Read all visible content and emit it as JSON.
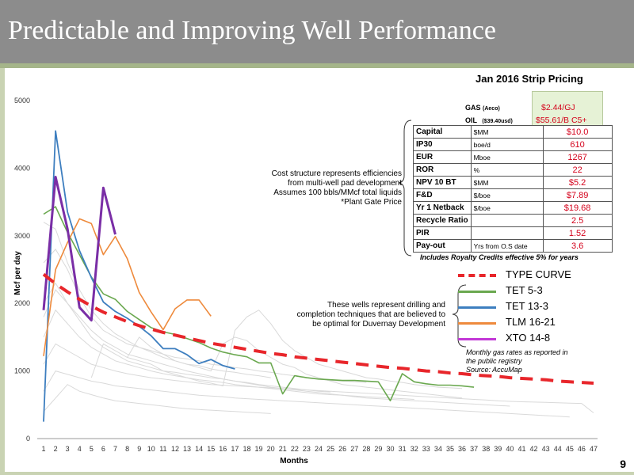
{
  "slide": {
    "title": "Predictable and Improving Well Performance",
    "page_number": "9"
  },
  "pricing": {
    "title": "Jan 2016 Strip Pricing",
    "gas_label": "GAS",
    "gas_sub": "(Aeco)",
    "gas_value": "$2.44/GJ",
    "oil_label": "OIL",
    "oil_sub": "($39.40usd)",
    "oil_value": "$55.61/B C5+"
  },
  "economics": {
    "rows": [
      {
        "metric": "Capital",
        "unit": "$MM",
        "value": "$10.0"
      },
      {
        "metric": "IP30",
        "unit": "boe/d",
        "value": "610"
      },
      {
        "metric": "EUR",
        "unit": "Mboe",
        "value": "1267"
      },
      {
        "metric": "ROR",
        "unit": "%",
        "value": "22"
      },
      {
        "metric": "NPV 10 BT",
        "unit": "$MM",
        "value": "$5.2"
      },
      {
        "metric": "F&D",
        "unit": "$/boe",
        "value": "$7.89"
      },
      {
        "metric": "Yr 1 Netback",
        "unit": "$/boe",
        "value": "$19.68"
      },
      {
        "metric": "Recycle Ratio",
        "unit": "",
        "value": "2.5"
      },
      {
        "metric": "PIR",
        "unit": "",
        "value": "1.52"
      },
      {
        "metric": "Pay-out",
        "unit": "Yrs from O.S date",
        "value": "3.6"
      }
    ],
    "royalty_note": "Includes Royalty Credits effective 5% for years"
  },
  "notes": {
    "cost_lines": [
      "Cost structure represents efficiencies",
      "from multi-well pad development",
      "Assumes 100 bbls/MMcf total liquids",
      "*Plant Gate Price"
    ],
    "wells_lines": [
      "These wells represent drilling and",
      "completion techniques that are believed to",
      "be optimal for Duvernay Development"
    ],
    "registry_lines": [
      "Monthly gas rates as reported in",
      "the public registry",
      "Source: AccuMap"
    ]
  },
  "colors": {
    "type_curve": "#e8262b",
    "tet53": "#6aa84f",
    "tet133": "#3d7ebf",
    "tlm1621": "#ee8a3c",
    "xto148": "#7a2ea6",
    "background_wells": "#d9d9d9",
    "title_bar": "#8c8c8c"
  },
  "chart_data": {
    "type": "line",
    "title": "",
    "xlabel": "Months",
    "ylabel": "Mcf per day",
    "ylim": [
      0,
      5000
    ],
    "xlim": [
      1,
      47
    ],
    "y_ticks": [
      0,
      1000,
      2000,
      3000,
      4000,
      5000
    ],
    "x_ticks": [
      "1",
      "2",
      "3",
      "4",
      "5",
      "6",
      "7",
      "8",
      "9",
      "10",
      "11",
      "12",
      "13",
      "14",
      "15",
      "16",
      "17",
      "18",
      "19",
      "20",
      "21",
      "22",
      "23",
      "24",
      "25",
      "26",
      "27",
      "28",
      "29",
      "30",
      "31",
      "32",
      "33",
      "34",
      "35",
      "36",
      "37",
      "38",
      "39",
      "40",
      "41",
      "42",
      "43",
      "44",
      "45",
      "46",
      "47"
    ],
    "grid": false,
    "legend_position": "right",
    "series": [
      {
        "name": "TYPE CURVE",
        "style": "dashed",
        "x": [
          1,
          2,
          3,
          4,
          5,
          6,
          7,
          8,
          9,
          10,
          11,
          12,
          13,
          14,
          15,
          16,
          17,
          18,
          19,
          20,
          21,
          22,
          23,
          24,
          25,
          26,
          27,
          28,
          29,
          30,
          31,
          32,
          33,
          34,
          35,
          36,
          37,
          38,
          39,
          40,
          41,
          42,
          43,
          44,
          45,
          46,
          47
        ],
        "y": [
          2430,
          2290,
          2170,
          2060,
          1960,
          1870,
          1800,
          1730,
          1670,
          1620,
          1570,
          1530,
          1490,
          1450,
          1410,
          1380,
          1350,
          1320,
          1290,
          1260,
          1240,
          1210,
          1190,
          1170,
          1150,
          1130,
          1110,
          1090,
          1070,
          1050,
          1040,
          1020,
          1000,
          990,
          970,
          960,
          940,
          930,
          920,
          900,
          890,
          880,
          870,
          850,
          840,
          830,
          820
        ]
      },
      {
        "name": "TET 5-3",
        "x": [
          1,
          2,
          3,
          4,
          5,
          6,
          7,
          8,
          9,
          10,
          11,
          12,
          13,
          14,
          15,
          16,
          17,
          18,
          19,
          20,
          21,
          22,
          23,
          24,
          25,
          26,
          27,
          28,
          29,
          30,
          31,
          32,
          33,
          34,
          35,
          36,
          37
        ],
        "y": [
          3320,
          3430,
          3050,
          2720,
          2390,
          2140,
          2060,
          1880,
          1760,
          1640,
          1580,
          1540,
          1480,
          1420,
          1340,
          1280,
          1240,
          1210,
          1120,
          1120,
          660,
          930,
          900,
          880,
          870,
          860,
          860,
          850,
          840,
          560,
          960,
          840,
          810,
          790,
          790,
          780,
          760
        ]
      },
      {
        "name": "TET 13-3",
        "x": [
          1,
          2,
          3,
          4,
          5,
          6,
          7,
          8,
          9,
          10,
          11,
          12,
          13,
          14,
          15,
          16,
          17
        ],
        "y": [
          250,
          4550,
          3350,
          2780,
          2380,
          2020,
          1880,
          1780,
          1660,
          1520,
          1330,
          1330,
          1240,
          1110,
          1170,
          1080,
          1030
        ]
      },
      {
        "name": "TLM 16-21",
        "x": [
          1,
          2,
          3,
          4,
          5,
          6,
          7,
          8,
          9,
          10,
          11,
          12,
          13,
          14,
          15
        ],
        "y": [
          1220,
          2500,
          2900,
          3250,
          3180,
          2720,
          2990,
          2660,
          2160,
          1870,
          1610,
          1920,
          2050,
          2050,
          1810
        ]
      },
      {
        "name": "XTO 14-8",
        "x": [
          1,
          2,
          3,
          4,
          5,
          6,
          7
        ],
        "y": [
          1900,
          3870,
          3100,
          1940,
          1750,
          3710,
          3020
        ]
      }
    ],
    "background_wells": [
      {
        "x": [
          1,
          2,
          3,
          4,
          5,
          6,
          7,
          8,
          9,
          10,
          11,
          12,
          13,
          14,
          15,
          16,
          17,
          18,
          19,
          20
        ],
        "y": [
          3200,
          3100,
          2600,
          2200,
          1900,
          1700,
          1550,
          1450,
          1350,
          1280,
          1200,
          1150,
          1100,
          1080,
          1030,
          1000,
          980,
          950,
          930,
          900
        ]
      },
      {
        "x": [
          1,
          2,
          3,
          4,
          5,
          6,
          7,
          8,
          9,
          10,
          11,
          12,
          13,
          14,
          15,
          16,
          17,
          18,
          19,
          20,
          21,
          22,
          23,
          24,
          25,
          26,
          27,
          28
        ],
        "y": [
          2600,
          2800,
          2500,
          2100,
          1800,
          1600,
          1500,
          1400,
          1350,
          1300,
          1250,
          1200,
          1180,
          1150,
          1100,
          1080,
          1050,
          1030,
          1000,
          980,
          950,
          930,
          900,
          880,
          860,
          850,
          840,
          830
        ]
      },
      {
        "x": [
          1,
          2,
          3,
          4,
          5,
          6,
          7,
          8,
          9,
          10,
          11,
          12,
          13,
          14,
          15,
          16,
          17,
          18,
          19,
          20,
          21,
          22,
          23,
          24,
          25
        ],
        "y": [
          1800,
          2200,
          2000,
          1750,
          1500,
          1350,
          1250,
          1150,
          1100,
          1050,
          1000,
          980,
          950,
          930,
          900,
          880,
          850,
          830,
          800,
          780,
          760,
          740,
          720,
          700,
          690
        ]
      },
      {
        "x": [
          1,
          2,
          3,
          4,
          5,
          6,
          7,
          8,
          9,
          10,
          11,
          12,
          13,
          14,
          15,
          16,
          17,
          18,
          19,
          20,
          21,
          22,
          23,
          24,
          25,
          26,
          27,
          28,
          29,
          30,
          31,
          32
        ],
        "y": [
          1500,
          1900,
          1700,
          1500,
          1350,
          1250,
          1150,
          1100,
          1050,
          1000,
          960,
          930,
          900,
          870,
          850,
          830,
          800,
          780,
          760,
          740,
          720,
          700,
          680,
          660,
          650,
          640,
          630,
          620,
          610,
          600,
          590,
          580
        ]
      },
      {
        "x": [
          1,
          2,
          3,
          4,
          5,
          6,
          7,
          8,
          9,
          10,
          11,
          12,
          13,
          14,
          15,
          16,
          17,
          18,
          19,
          20,
          21,
          22,
          23,
          24,
          25,
          26,
          27,
          28,
          29,
          30,
          31,
          32,
          33,
          34,
          35,
          36,
          37,
          38,
          39,
          40,
          41,
          42,
          43,
          44,
          45,
          46,
          47
        ],
        "y": [
          1100,
          1400,
          1300,
          1200,
          1100,
          1050,
          1000,
          960,
          930,
          900,
          880,
          860,
          840,
          820,
          800,
          790,
          780,
          770,
          760,
          750,
          740,
          730,
          720,
          710,
          700,
          690,
          680,
          670,
          660,
          650,
          640,
          630,
          620,
          610,
          600,
          590,
          580,
          570,
          560,
          550,
          545,
          540,
          535,
          530,
          525,
          520,
          380
        ]
      },
      {
        "x": [
          1,
          2,
          3,
          4,
          5,
          6,
          7,
          8,
          9,
          10,
          11,
          12,
          13,
          14,
          15,
          16,
          17,
          18,
          19,
          20,
          21,
          22,
          23,
          24,
          25,
          26,
          27,
          28,
          29,
          30,
          31,
          32,
          33,
          34,
          35,
          36,
          37,
          38,
          39,
          40,
          41,
          42,
          43,
          44,
          45
        ],
        "y": [
          700,
          1000,
          950,
          900,
          850,
          820,
          780,
          760,
          740,
          720,
          700,
          680,
          660,
          640,
          630,
          620,
          600,
          590,
          580,
          570,
          560,
          550,
          540,
          530,
          520,
          510,
          500,
          490,
          480,
          470,
          460,
          450,
          440,
          430,
          420,
          410,
          400,
          390,
          380,
          370,
          360,
          350,
          340,
          330,
          320
        ]
      },
      {
        "x": [
          5,
          6,
          7,
          8,
          9,
          10,
          11,
          12,
          13,
          14,
          15,
          16,
          17,
          18,
          19,
          20,
          21,
          22,
          23,
          24,
          25,
          26,
          27,
          28,
          29,
          30,
          31,
          32,
          33,
          34,
          35,
          36
        ],
        "y": [
          900,
          1400,
          1300,
          1200,
          1150,
          1100,
          1000,
          950,
          900,
          850,
          820,
          780,
          1600,
          1800,
          1900,
          1700,
          1450,
          1300,
          1200,
          1100,
          1050,
          1000,
          950,
          900,
          880,
          850,
          830,
          800,
          780,
          760,
          750,
          740
        ]
      },
      {
        "x": [
          8,
          9,
          10,
          11,
          12,
          13,
          14,
          15,
          16,
          17,
          18,
          19,
          20,
          21,
          22,
          23,
          24,
          25,
          26,
          27,
          28,
          29,
          30,
          31,
          32,
          33,
          34,
          35,
          36
        ],
        "y": [
          1200,
          1500,
          1350,
          1250,
          1150,
          1100,
          1050,
          1000,
          1400,
          1500,
          1450,
          1300,
          1200,
          1100,
          1050,
          950,
          900,
          850,
          800,
          780,
          760,
          740,
          720,
          700,
          680,
          660,
          640,
          620,
          600
        ]
      },
      {
        "x": [
          1,
          2,
          3,
          4,
          5,
          6,
          7,
          8,
          9,
          10,
          11,
          12,
          13,
          14,
          15,
          16,
          17,
          18,
          19,
          20
        ],
        "y": [
          400,
          600,
          800,
          700,
          650,
          600,
          560,
          540,
          520,
          500,
          480,
          460,
          440,
          430,
          420,
          410,
          400,
          390,
          380,
          370
        ]
      },
      {
        "x": [
          1,
          2,
          3,
          4,
          5,
          6,
          7,
          8,
          9,
          10,
          11,
          12,
          13,
          14,
          15,
          16,
          17,
          18,
          19,
          20,
          21,
          22,
          23,
          24,
          25,
          26,
          27,
          28,
          29,
          30,
          31,
          32,
          33,
          34,
          35,
          36,
          37,
          38,
          39,
          40
        ],
        "y": [
          2000,
          2300,
          2000,
          1800,
          1600,
          1450,
          1350,
          1250,
          1200,
          1150,
          1100,
          1050,
          1000,
          960,
          920,
          880,
          850,
          820,
          790,
          760,
          740,
          720,
          700,
          680,
          660,
          640,
          620,
          600,
          590,
          580,
          570,
          560,
          550,
          540,
          530,
          520,
          510,
          500,
          490,
          480
        ]
      }
    ]
  }
}
